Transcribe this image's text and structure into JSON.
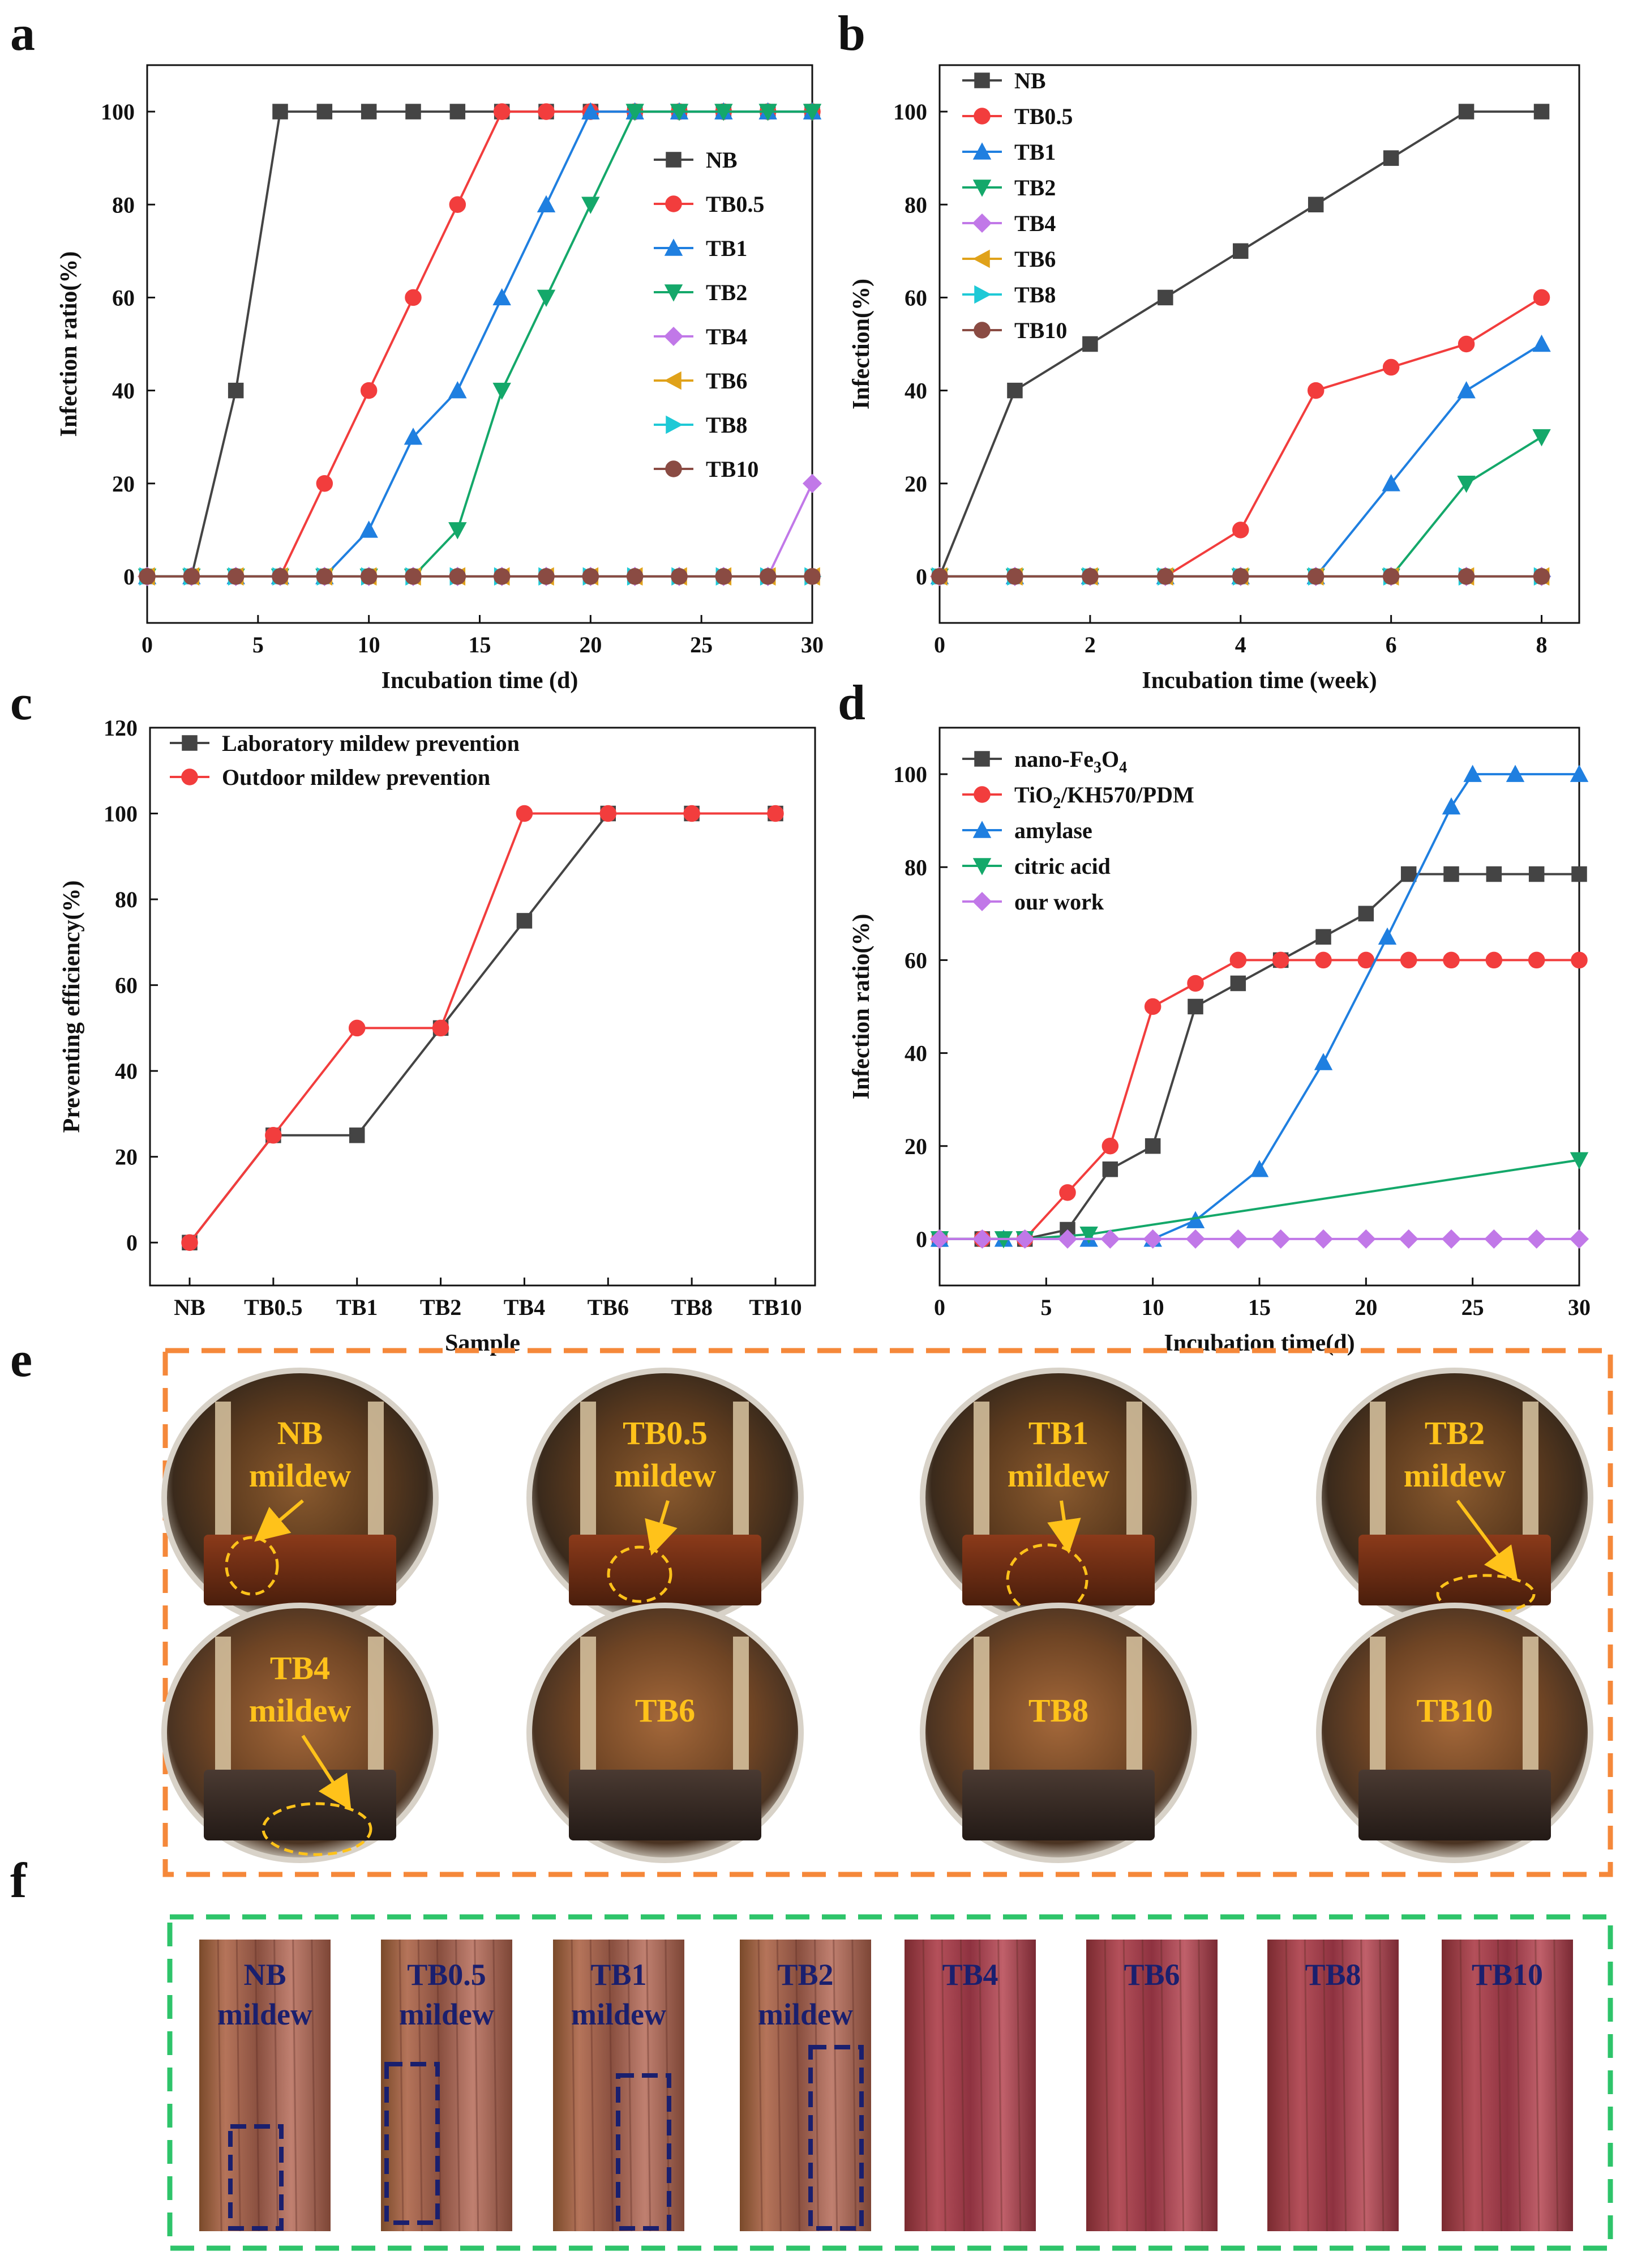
{
  "panels": {
    "a": "a",
    "b": "b",
    "c": "c",
    "d": "d",
    "e": "e",
    "f": "f"
  },
  "colors": {
    "NB": "#444444",
    "TB0.5": "#f23d3d",
    "TB1": "#1f7fe0",
    "TB2": "#14a86a",
    "TB4": "#c178e8",
    "TB6": "#e0a21a",
    "TB8": "#1ec9d6",
    "TB10": "#8a4b43",
    "orange_box": "#f5883a",
    "green_box": "#2ec46a",
    "photo_label": "#ffc21a",
    "photo_label_f": "#1a1f6e"
  },
  "chart_data": [
    {
      "id": "a",
      "type": "line",
      "xlabel": "Incubation time (d)",
      "ylabel": "Infection ratio(%)",
      "xlim": [
        0,
        30
      ],
      "ylim": [
        -10,
        110
      ],
      "xticks": [
        0,
        5,
        10,
        15,
        20,
        25,
        30
      ],
      "yticks": [
        0,
        20,
        40,
        60,
        80,
        100
      ],
      "legend_position": "right",
      "series": [
        {
          "name": "NB",
          "marker": "square",
          "x": [
            0,
            2,
            4,
            6,
            8,
            10,
            12,
            14,
            16,
            18,
            20,
            22,
            24,
            26,
            28,
            30
          ],
          "y": [
            0,
            0,
            40,
            100,
            100,
            100,
            100,
            100,
            100,
            100,
            100,
            100,
            100,
            100,
            100,
            100
          ]
        },
        {
          "name": "TB0.5",
          "marker": "circle",
          "x": [
            0,
            2,
            4,
            6,
            8,
            10,
            12,
            14,
            16,
            18,
            20,
            22,
            24,
            26,
            28,
            30
          ],
          "y": [
            0,
            0,
            0,
            0,
            20,
            40,
            60,
            80,
            100,
            100,
            100,
            100,
            100,
            100,
            100,
            100
          ]
        },
        {
          "name": "TB1",
          "marker": "triangle-up",
          "x": [
            0,
            2,
            4,
            6,
            8,
            10,
            12,
            14,
            16,
            18,
            20,
            22,
            24,
            26,
            28,
            30
          ],
          "y": [
            0,
            0,
            0,
            0,
            0,
            10,
            30,
            40,
            60,
            80,
            100,
            100,
            100,
            100,
            100,
            100
          ]
        },
        {
          "name": "TB2",
          "marker": "triangle-down",
          "x": [
            0,
            2,
            4,
            6,
            8,
            10,
            12,
            14,
            16,
            18,
            20,
            22,
            24,
            26,
            28,
            30
          ],
          "y": [
            0,
            0,
            0,
            0,
            0,
            0,
            0,
            10,
            40,
            60,
            80,
            100,
            100,
            100,
            100,
            100
          ]
        },
        {
          "name": "TB4",
          "marker": "diamond",
          "x": [
            0,
            2,
            4,
            6,
            8,
            10,
            12,
            14,
            16,
            18,
            20,
            22,
            24,
            26,
            28,
            30
          ],
          "y": [
            0,
            0,
            0,
            0,
            0,
            0,
            0,
            0,
            0,
            0,
            0,
            0,
            0,
            0,
            0,
            20
          ]
        },
        {
          "name": "TB6",
          "marker": "triangle-left",
          "x": [
            0,
            2,
            4,
            6,
            8,
            10,
            12,
            14,
            16,
            18,
            20,
            22,
            24,
            26,
            28,
            30
          ],
          "y": [
            0,
            0,
            0,
            0,
            0,
            0,
            0,
            0,
            0,
            0,
            0,
            0,
            0,
            0,
            0,
            0
          ]
        },
        {
          "name": "TB8",
          "marker": "triangle-right",
          "x": [
            0,
            2,
            4,
            6,
            8,
            10,
            12,
            14,
            16,
            18,
            20,
            22,
            24,
            26,
            28,
            30
          ],
          "y": [
            0,
            0,
            0,
            0,
            0,
            0,
            0,
            0,
            0,
            0,
            0,
            0,
            0,
            0,
            0,
            0
          ]
        },
        {
          "name": "TB10",
          "marker": "circle",
          "x": [
            0,
            2,
            4,
            6,
            8,
            10,
            12,
            14,
            16,
            18,
            20,
            22,
            24,
            26,
            28,
            30
          ],
          "y": [
            0,
            0,
            0,
            0,
            0,
            0,
            0,
            0,
            0,
            0,
            0,
            0,
            0,
            0,
            0,
            0
          ]
        }
      ]
    },
    {
      "id": "b",
      "type": "line",
      "xlabel": "Incubation time (week)",
      "ylabel": "Infection(%)",
      "xlim": [
        0,
        8.5
      ],
      "ylim": [
        -10,
        110
      ],
      "xticks": [
        0,
        2,
        4,
        6,
        8
      ],
      "yticks": [
        0,
        20,
        40,
        60,
        80,
        100
      ],
      "legend_position": "top-left",
      "series": [
        {
          "name": "NB",
          "marker": "square",
          "x": [
            0,
            1,
            2,
            3,
            4,
            5,
            6,
            7,
            8
          ],
          "y": [
            0,
            40,
            50,
            60,
            70,
            80,
            90,
            100,
            100
          ]
        },
        {
          "name": "TB0.5",
          "marker": "circle",
          "x": [
            0,
            1,
            2,
            3,
            4,
            5,
            6,
            7,
            8
          ],
          "y": [
            0,
            0,
            0,
            0,
            10,
            40,
            45,
            50,
            60
          ]
        },
        {
          "name": "TB1",
          "marker": "triangle-up",
          "x": [
            0,
            1,
            2,
            3,
            4,
            5,
            6,
            7,
            8
          ],
          "y": [
            0,
            0,
            0,
            0,
            0,
            0,
            20,
            40,
            50
          ]
        },
        {
          "name": "TB2",
          "marker": "triangle-down",
          "x": [
            0,
            1,
            2,
            3,
            4,
            5,
            6,
            7,
            8
          ],
          "y": [
            0,
            0,
            0,
            0,
            0,
            0,
            0,
            20,
            30
          ]
        },
        {
          "name": "TB4",
          "marker": "diamond",
          "x": [
            0,
            1,
            2,
            3,
            4,
            5,
            6,
            7,
            8
          ],
          "y": [
            0,
            0,
            0,
            0,
            0,
            0,
            0,
            0,
            0
          ]
        },
        {
          "name": "TB6",
          "marker": "triangle-left",
          "x": [
            0,
            1,
            2,
            3,
            4,
            5,
            6,
            7,
            8
          ],
          "y": [
            0,
            0,
            0,
            0,
            0,
            0,
            0,
            0,
            0
          ]
        },
        {
          "name": "TB8",
          "marker": "triangle-right",
          "x": [
            0,
            1,
            2,
            3,
            4,
            5,
            6,
            7,
            8
          ],
          "y": [
            0,
            0,
            0,
            0,
            0,
            0,
            0,
            0,
            0
          ]
        },
        {
          "name": "TB10",
          "marker": "circle",
          "x": [
            0,
            1,
            2,
            3,
            4,
            5,
            6,
            7,
            8
          ],
          "y": [
            0,
            0,
            0,
            0,
            0,
            0,
            0,
            0,
            0
          ]
        }
      ]
    },
    {
      "id": "c",
      "type": "line",
      "xlabel": "Sample",
      "ylabel": "Preventing efficiency(%)",
      "categories": [
        "NB",
        "TB0.5",
        "TB1",
        "TB2",
        "TB4",
        "TB6",
        "TB8",
        "TB10"
      ],
      "ylim": [
        -10,
        120
      ],
      "yticks": [
        0,
        20,
        40,
        60,
        80,
        100,
        120
      ],
      "legend_position": "top-left",
      "series": [
        {
          "name": "Laboratory mildew prevention",
          "marker": "square",
          "values": [
            0,
            25,
            25,
            50,
            75,
            100,
            100,
            100
          ]
        },
        {
          "name": "Outdoor mildew prevention",
          "marker": "circle",
          "values": [
            0,
            25,
            50,
            50,
            100,
            100,
            100,
            100
          ]
        }
      ]
    },
    {
      "id": "d",
      "type": "line",
      "xlabel": "Incubation time(d)",
      "ylabel": "Infection ratio(%)",
      "xlim": [
        0,
        30
      ],
      "ylim": [
        -10,
        110
      ],
      "xticks": [
        0,
        5,
        10,
        15,
        20,
        25,
        30
      ],
      "yticks": [
        0,
        20,
        40,
        60,
        80,
        100
      ],
      "legend_position": "top-left",
      "series": [
        {
          "name": "nano-Fe3O4",
          "color": "#444444",
          "marker": "square",
          "x": [
            0,
            2,
            4,
            6,
            8,
            10,
            12,
            14,
            16,
            18,
            20,
            22,
            24,
            26,
            28,
            30
          ],
          "y": [
            0,
            0,
            0,
            2,
            15,
            20,
            50,
            55,
            60,
            65,
            70,
            78.5,
            78.5,
            78.5,
            78.5,
            78.5
          ]
        },
        {
          "name": "TiO2/KH570/PDM",
          "color": "#f23d3d",
          "marker": "circle",
          "x": [
            0,
            2,
            4,
            6,
            8,
            10,
            12,
            14,
            16,
            18,
            20,
            22,
            24,
            26,
            28,
            30
          ],
          "y": [
            0,
            0,
            0,
            10,
            20,
            50,
            55,
            60,
            60,
            60,
            60,
            60,
            60,
            60,
            60,
            60
          ]
        },
        {
          "name": "amylase",
          "color": "#1f7fe0",
          "marker": "triangle-up",
          "x": [
            0,
            3,
            7,
            10,
            12,
            15,
            18,
            21,
            24,
            25,
            27,
            30
          ],
          "y": [
            0,
            0,
            0,
            0,
            4,
            15,
            38,
            65,
            93,
            100,
            100,
            100
          ]
        },
        {
          "name": "citric acid",
          "color": "#14a86a",
          "marker": "triangle-down",
          "x": [
            0,
            3,
            4,
            7,
            30
          ],
          "y": [
            0,
            0,
            0,
            1,
            17
          ]
        },
        {
          "name": "our work",
          "color": "#c178e8",
          "marker": "diamond",
          "x": [
            0,
            2,
            4,
            6,
            8,
            10,
            12,
            14,
            16,
            18,
            20,
            22,
            24,
            26,
            28,
            30
          ],
          "y": [
            0,
            0,
            0,
            0,
            0,
            0,
            0,
            0,
            0,
            0,
            0,
            0,
            0,
            0,
            0,
            0
          ]
        }
      ]
    }
  ],
  "legend_d": {
    "nano_prefix": "nano-Fe",
    "nano_sub1": "3",
    "nano_mid": "O",
    "nano_sub2": "4",
    "tio2_prefix": "TiO",
    "tio2_sub": "2",
    "tio2_rest": "/KH570/PDM"
  },
  "photos_e": [
    {
      "label": "NB",
      "note": "mildew"
    },
    {
      "label": "TB0.5",
      "note": "mildew"
    },
    {
      "label": "TB1",
      "note": "mildew"
    },
    {
      "label": "TB2",
      "note": "mildew"
    },
    {
      "label": "TB4",
      "note": "mildew"
    },
    {
      "label": "TB6",
      "note": ""
    },
    {
      "label": "TB8",
      "note": ""
    },
    {
      "label": "TB10",
      "note": ""
    }
  ],
  "photos_f": [
    {
      "label": "NB",
      "note": "mildew"
    },
    {
      "label": "TB0.5",
      "note": "mildew"
    },
    {
      "label": "TB1",
      "note": "mildew"
    },
    {
      "label": "TB2",
      "note": "mildew"
    },
    {
      "label": "TB4",
      "note": ""
    },
    {
      "label": "TB6",
      "note": ""
    },
    {
      "label": "TB8",
      "note": ""
    },
    {
      "label": "TB10",
      "note": ""
    }
  ]
}
